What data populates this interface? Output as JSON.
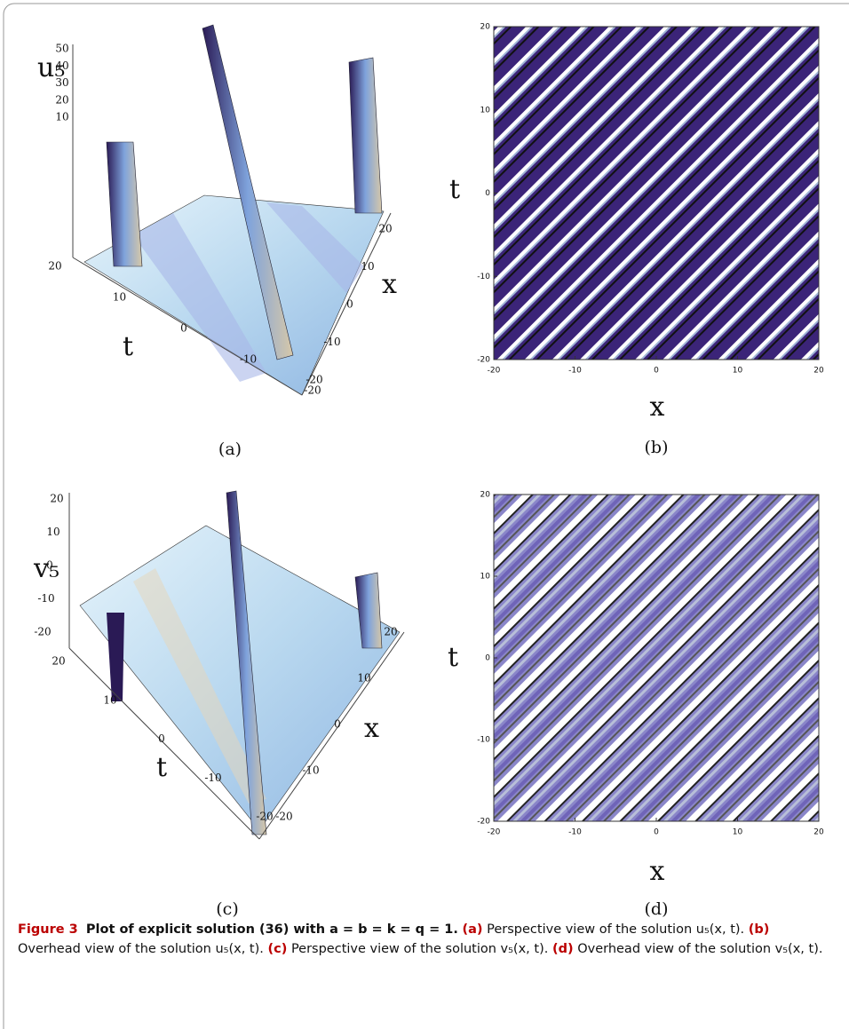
{
  "panels": [
    {
      "label": "(a)",
      "vertical_label": "u₅",
      "depth_label": "t",
      "horizontal_label": "x",
      "z_ticks": [
        "50",
        "40",
        "30",
        "20",
        "10"
      ],
      "t_ticks": [
        "20",
        "10",
        "0",
        "-10",
        "-20"
      ],
      "x_ticks": [
        "20",
        "10",
        "0",
        "-10",
        "-20"
      ]
    },
    {
      "label": "(b)",
      "x_label": "x",
      "y_label": "t",
      "x_ticks": [
        "-20",
        "-10",
        "0",
        "10",
        "20"
      ],
      "y_ticks": [
        "20",
        "10",
        "0",
        "-10",
        "-20"
      ]
    },
    {
      "label": "(c)",
      "vertical_label": "v₅",
      "depth_label": "t",
      "horizontal_label": "x",
      "z_ticks": [
        "20",
        "10",
        "0",
        "-10",
        "-20"
      ],
      "t_ticks": [
        "20",
        "10",
        "0",
        "-10",
        "-20"
      ],
      "x_ticks": [
        "20",
        "10",
        "0",
        "-10",
        "-20"
      ]
    },
    {
      "label": "(d)",
      "x_label": "x",
      "y_label": "t",
      "x_ticks": [
        "-20",
        "-10",
        "0",
        "10",
        "20"
      ],
      "y_ticks": [
        "20",
        "10",
        "0",
        "-10",
        "-20"
      ]
    }
  ],
  "caption": {
    "figure": "Figure 3",
    "title": "Plot of explicit solution (36) with a = b = k = q = 1.",
    "items": [
      {
        "label": "(a)",
        "text": "Perspective view of the solution u₅(x, t)."
      },
      {
        "label": "(b)",
        "text": "Overhead view of the solution u₅(x, t)."
      },
      {
        "label": "(c)",
        "text": "Perspective view of the solution v₅(x, t)."
      },
      {
        "label": "(d)",
        "text": "Overhead view of the solution v₅(x, t)."
      }
    ]
  }
}
